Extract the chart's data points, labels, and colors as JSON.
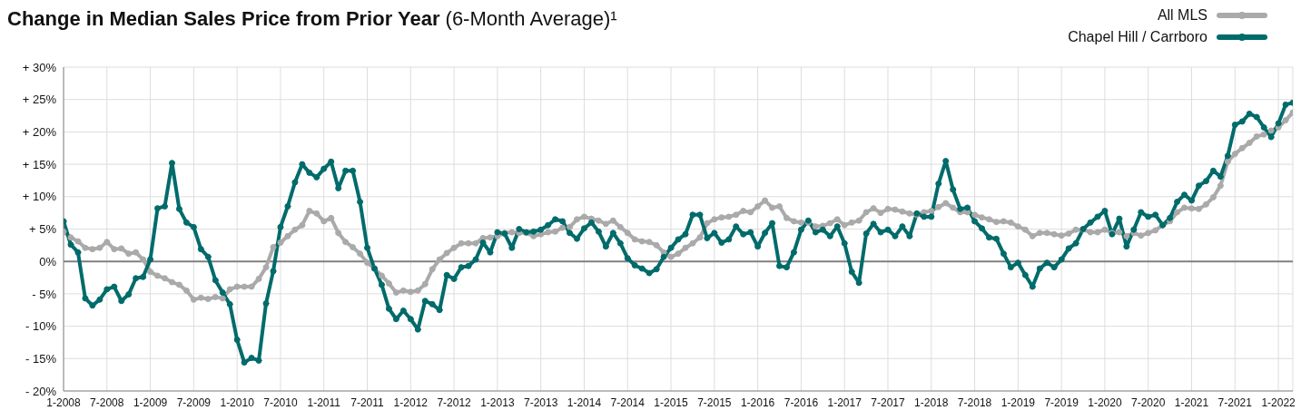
{
  "chart_data": {
    "type": "line",
    "title": "Change in Median Sales Price from Prior Year",
    "subtitle": "(6-Month Average)¹",
    "categories": [
      "1-2008",
      null,
      null,
      null,
      null,
      null,
      "7-2008",
      null,
      null,
      null,
      null,
      null,
      "1-2009",
      null,
      null,
      null,
      null,
      null,
      "7-2009",
      null,
      null,
      null,
      null,
      null,
      "1-2010",
      null,
      null,
      null,
      null,
      null,
      "7-2010",
      null,
      null,
      null,
      null,
      null,
      "1-2011",
      null,
      null,
      null,
      null,
      null,
      "7-2011",
      null,
      null,
      null,
      null,
      null,
      "1-2012",
      null,
      null,
      null,
      null,
      null,
      "7-2012",
      null,
      null,
      null,
      null,
      null,
      "1-2013",
      null,
      null,
      null,
      null,
      null,
      "7-2013",
      null,
      null,
      null,
      null,
      null,
      "1-2014",
      null,
      null,
      null,
      null,
      null,
      "7-2014",
      null,
      null,
      null,
      null,
      null,
      "1-2015",
      null,
      null,
      null,
      null,
      null,
      "7-2015",
      null,
      null,
      null,
      null,
      null,
      "1-2016",
      null,
      null,
      null,
      null,
      null,
      "7-2016",
      null,
      null,
      null,
      null,
      null,
      "1-2017",
      null,
      null,
      null,
      null,
      null,
      "7-2017",
      null,
      null,
      null,
      null,
      null,
      "1-2018",
      null,
      null,
      null,
      null,
      null,
      "7-2018",
      null,
      null,
      null,
      null,
      null,
      "1-2019",
      null,
      null,
      null,
      null,
      null,
      "7-2019",
      null,
      null,
      null,
      null,
      null,
      "1-2020",
      null,
      null,
      null,
      null,
      null,
      "7-2020",
      null,
      null,
      null,
      null,
      null,
      "1-2021",
      null,
      null,
      null,
      null,
      null,
      "7-2021",
      null,
      null,
      null,
      null,
      null,
      "1-2022",
      null,
      null
    ],
    "series": [
      {
        "name": "All MLS",
        "color": "#aaaaaa",
        "values": [
          4.6,
          3.7,
          3.1,
          2.1,
          1.9,
          2.1,
          3.0,
          1.9,
          2.0,
          1.2,
          1.4,
          0.3,
          -1.6,
          -2.2,
          -2.6,
          -3.2,
          -3.6,
          -4.5,
          -5.9,
          -5.6,
          -5.8,
          -5.5,
          -5.7,
          -4.3,
          -3.9,
          -3.9,
          -3.9,
          -2.7,
          -0.9,
          2.2,
          2.9,
          3.9,
          4.9,
          5.6,
          7.8,
          7.4,
          6.2,
          6.7,
          4.4,
          3.0,
          2.2,
          1.2,
          -0.2,
          -1.1,
          -2.2,
          -3.4,
          -4.8,
          -4.5,
          -4.7,
          -4.5,
          -3.5,
          -1.2,
          0.3,
          1.3,
          2.1,
          2.8,
          2.8,
          2.8,
          3.6,
          3.7,
          3.9,
          4.4,
          4.5,
          4.4,
          4.4,
          3.9,
          4.2,
          4.5,
          4.6,
          5.2,
          5.3,
          6.5,
          6.9,
          6.6,
          6.3,
          5.8,
          6.3,
          5.3,
          4.4,
          3.4,
          3.1,
          3.0,
          2.5,
          1.4,
          0.7,
          1.2,
          2.1,
          2.8,
          3.7,
          5.9,
          6.5,
          6.8,
          6.9,
          7.2,
          7.8,
          7.6,
          8.5,
          9.4,
          8.3,
          8.5,
          6.7,
          6.2,
          6.0,
          6.0,
          5.4,
          5.5,
          5.9,
          6.5,
          5.6,
          6.0,
          6.3,
          7.6,
          8.2,
          7.5,
          8.1,
          8.0,
          7.7,
          7.4,
          7.2,
          7.6,
          7.8,
          8.4,
          9.0,
          8.3,
          7.6,
          7.6,
          7.2,
          6.8,
          6.5,
          6.1,
          6.2,
          6.0,
          5.4,
          4.9,
          3.9,
          4.4,
          4.4,
          4.2,
          4.0,
          4.3,
          4.9,
          4.9,
          4.5,
          4.5,
          4.9,
          4.4,
          4.5,
          3.9,
          4.4,
          4.0,
          4.4,
          4.8,
          5.6,
          6.2,
          7.6,
          8.3,
          8.2,
          8.1,
          8.8,
          9.9,
          11.7,
          15.4,
          16.6,
          17.5,
          18.3,
          19.3,
          19.6,
          20.2,
          20.7,
          21.8,
          23.0
        ]
      },
      {
        "name": "Chapel Hill / Carrboro",
        "color": "#006b6b",
        "values": [
          6.2,
          2.6,
          1.4,
          -5.7,
          -6.8,
          -5.9,
          -4.3,
          -3.9,
          -6.1,
          -5.1,
          -2.6,
          -2.4,
          0.3,
          8.2,
          8.5,
          15.2,
          8.1,
          6.0,
          5.3,
          1.9,
          0.7,
          -2.9,
          -4.8,
          -6.6,
          -12.1,
          -15.6,
          -14.9,
          -15.3,
          -6.5,
          -1.5,
          5.3,
          8.5,
          12.2,
          15.0,
          13.7,
          13.0,
          14.3,
          15.4,
          11.3,
          14.0,
          14.0,
          9.2,
          2.1,
          -1.1,
          -3.6,
          -7.3,
          -8.9,
          -7.6,
          -8.9,
          -10.5,
          -6.1,
          -6.6,
          -7.5,
          -2.1,
          -2.7,
          -0.9,
          -0.7,
          0.3,
          2.9,
          1.4,
          4.5,
          4.3,
          2.1,
          5.0,
          4.5,
          4.6,
          4.9,
          5.6,
          6.5,
          6.2,
          4.4,
          3.5,
          5.1,
          6.0,
          4.6,
          2.3,
          4.4,
          2.8,
          0.5,
          -0.6,
          -1.1,
          -1.8,
          -1.2,
          0.7,
          2.1,
          3.4,
          4.2,
          7.2,
          7.2,
          3.6,
          4.4,
          2.9,
          3.4,
          5.4,
          4.2,
          4.5,
          2.3,
          4.4,
          5.9,
          -0.7,
          -0.9,
          1.4,
          4.9,
          6.3,
          4.5,
          4.9,
          3.9,
          5.4,
          2.8,
          -1.6,
          -3.3,
          4.3,
          5.8,
          4.5,
          4.9,
          3.9,
          5.4,
          3.9,
          7.4,
          6.9,
          6.9,
          12.0,
          15.5,
          11.1,
          8.1,
          8.3,
          6.2,
          5.1,
          3.7,
          3.5,
          1.2,
          -0.9,
          -0.2,
          -2.1,
          -3.9,
          -1.1,
          -0.2,
          -0.9,
          0.3,
          2.0,
          2.8,
          5.0,
          6.0,
          6.9,
          7.8,
          4.2,
          6.6,
          2.3,
          4.9,
          7.6,
          6.9,
          7.2,
          5.6,
          6.7,
          9.2,
          10.3,
          9.4,
          11.7,
          12.4,
          14.0,
          13.1,
          16.3,
          21.1,
          21.6,
          22.8,
          22.3,
          20.7,
          19.2,
          21.3,
          24.2,
          24.5
        ]
      }
    ],
    "ylim": [
      -20,
      30
    ],
    "yticks": [
      {
        "value": -20,
        "label": "- 20%"
      },
      {
        "value": -15,
        "label": "- 15%"
      },
      {
        "value": -10,
        "label": "- 10%"
      },
      {
        "value": -5,
        "label": "- 5%"
      },
      {
        "value": 0,
        "label": "0%"
      },
      {
        "value": 5,
        "label": "+ 5%"
      },
      {
        "value": 10,
        "label": "+ 10%"
      },
      {
        "value": 15,
        "label": "+ 15%"
      },
      {
        "value": 20,
        "label": "+ 20%"
      },
      {
        "value": 25,
        "label": "+ 25%"
      },
      {
        "value": 30,
        "label": "+ 30%"
      }
    ],
    "ref_lines": [
      {
        "axis": "y",
        "value": 0,
        "color": "#808080"
      }
    ],
    "grid": true,
    "legend": "top right",
    "marker": "circle",
    "line_style": "solid"
  }
}
